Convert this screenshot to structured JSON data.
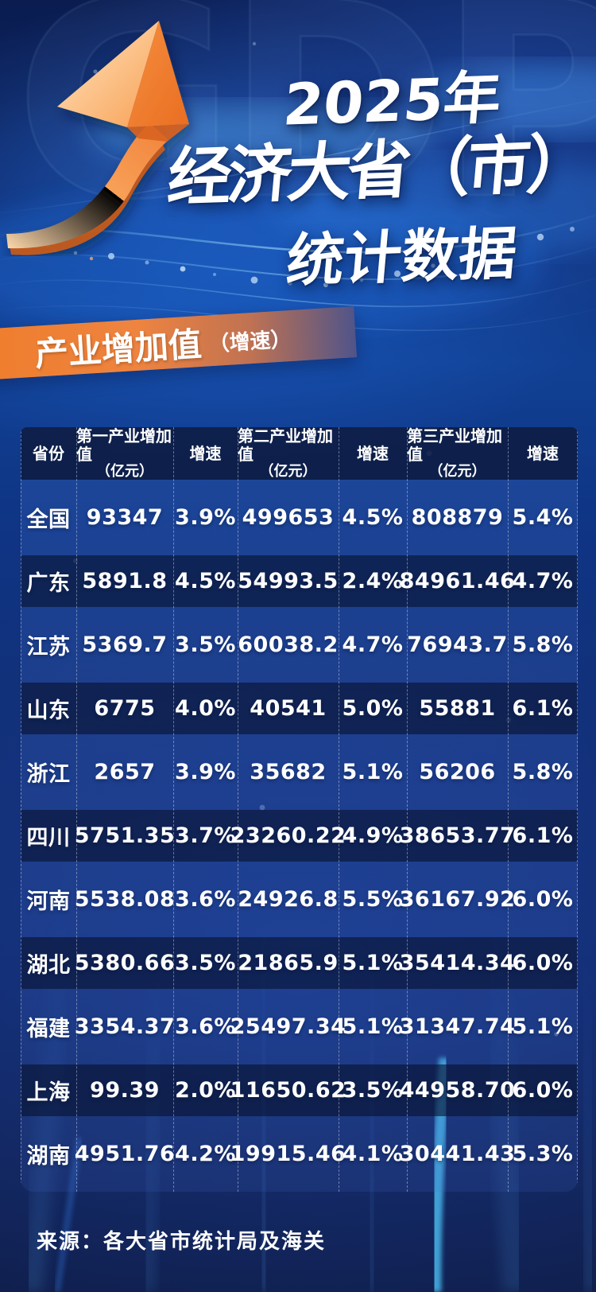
{
  "header": {
    "watermark": "GDP",
    "title_lines": [
      "2025年",
      "经济大省（市）",
      "统计数据"
    ]
  },
  "badge": {
    "label": "产业增加值",
    "suffix": "（增速）"
  },
  "chart_data": {
    "type": "table",
    "title": "2025年经济大省（市）统计数据",
    "subtitle": "产业增加值（增速）",
    "columns": [
      {
        "label": "省份",
        "sub": ""
      },
      {
        "label": "第一产业增加值",
        "sub": "（亿元）"
      },
      {
        "label": "增速",
        "sub": ""
      },
      {
        "label": "第二产业增加值",
        "sub": "（亿元）"
      },
      {
        "label": "增速",
        "sub": ""
      },
      {
        "label": "第三产业增加值",
        "sub": "（亿元）"
      },
      {
        "label": "增速",
        "sub": ""
      }
    ],
    "rows": [
      {
        "province": "全国",
        "values": [
          "93347",
          "3.9%",
          "499653",
          "4.5%",
          "808879",
          "5.4%"
        ]
      },
      {
        "province": "广东",
        "values": [
          "5891.8",
          "4.5%",
          "54993.5",
          "2.4%",
          "84961.46",
          "4.7%"
        ]
      },
      {
        "province": "江苏",
        "values": [
          "5369.7",
          "3.5%",
          "60038.2",
          "4.7%",
          "76943.7",
          "5.8%"
        ]
      },
      {
        "province": "山东",
        "values": [
          "6775",
          "4.0%",
          "40541",
          "5.0%",
          "55881",
          "6.1%"
        ]
      },
      {
        "province": "浙江",
        "values": [
          "2657",
          "3.9%",
          "35682",
          "5.1%",
          "56206",
          "5.8%"
        ]
      },
      {
        "province": "四川",
        "values": [
          "5751.35",
          "3.7%",
          "23260.22",
          "4.9%",
          "38653.77",
          "6.1%"
        ]
      },
      {
        "province": "河南",
        "values": [
          "5538.08",
          "3.6%",
          "24926.8",
          "5.5%",
          "36167.92",
          "6.0%"
        ]
      },
      {
        "province": "湖北",
        "values": [
          "5380.66",
          "3.5%",
          "21865.9",
          "5.1%",
          "35414.34",
          "6.0%"
        ]
      },
      {
        "province": "福建",
        "values": [
          "3354.37",
          "3.6%",
          "25497.34",
          "5.1%",
          "31347.74",
          "5.1%"
        ]
      },
      {
        "province": "上海",
        "values": [
          "99.39",
          "2.0%",
          "11650.62",
          "3.5%",
          "44958.70",
          "6.0%"
        ]
      },
      {
        "province": "湖南",
        "values": [
          "4951.76",
          "4.2%",
          "19915.46",
          "4.1%",
          "30441.43",
          "5.3%"
        ]
      }
    ],
    "source": "来源：各大省市统计局及海关"
  },
  "footer": {
    "source": "来源：各大省市统计局及海关"
  },
  "colors": {
    "accent_orange": "#ee7f30",
    "badge_fade_blue": "#4f548a",
    "deep_navy": "#0b1d50",
    "bright_blue": "#1e5ec0",
    "cyan_streak": "#45aee2",
    "row_shade": "rgba(7,16,45,0.60)",
    "text": "#ffffff"
  }
}
